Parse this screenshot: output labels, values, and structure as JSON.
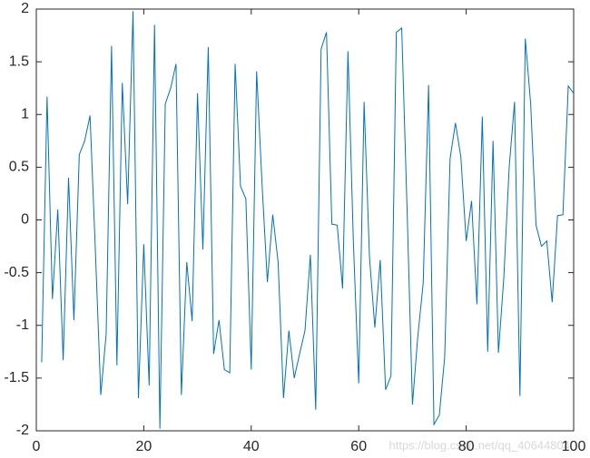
{
  "chart_data": {
    "type": "line",
    "x": [
      1,
      2,
      3,
      4,
      5,
      6,
      7,
      8,
      9,
      10,
      11,
      12,
      13,
      14,
      15,
      16,
      17,
      18,
      19,
      20,
      21,
      22,
      23,
      24,
      25,
      26,
      27,
      28,
      29,
      30,
      31,
      32,
      33,
      34,
      35,
      36,
      37,
      38,
      39,
      40,
      41,
      42,
      43,
      44,
      45,
      46,
      47,
      48,
      49,
      50,
      51,
      52,
      53,
      54,
      55,
      56,
      57,
      58,
      59,
      60,
      61,
      62,
      63,
      64,
      65,
      66,
      67,
      68,
      69,
      70,
      71,
      72,
      73,
      74,
      75,
      76,
      77,
      78,
      79,
      80,
      81,
      82,
      83,
      84,
      85,
      86,
      87,
      88,
      89,
      90,
      91,
      92,
      93,
      94,
      95,
      96,
      97,
      98,
      99,
      100
    ],
    "values": [
      -1.35,
      1.17,
      -0.75,
      0.1,
      -1.33,
      0.4,
      -0.95,
      0.62,
      0.75,
      0.99,
      -0.3,
      -1.66,
      -1.08,
      1.65,
      -1.38,
      1.3,
      0.15,
      1.98,
      -1.69,
      -0.23,
      -1.57,
      1.85,
      -1.98,
      1.1,
      1.25,
      1.48,
      -1.66,
      -0.4,
      -0.96,
      1.2,
      -0.28,
      1.64,
      -1.27,
      -0.95,
      -1.42,
      -1.45,
      1.48,
      0.32,
      0.2,
      -1.42,
      1.41,
      0.35,
      -0.59,
      0.05,
      -0.4,
      -1.69,
      -1.05,
      -1.5,
      -1.27,
      -1.05,
      -0.33,
      -1.8,
      1.62,
      1.78,
      -0.04,
      -0.05,
      -0.65,
      1.6,
      -0.2,
      -1.55,
      1.12,
      -0.35,
      -1.02,
      -0.38,
      -1.61,
      -1.48,
      1.78,
      1.82,
      0.1,
      -1.75,
      -1.1,
      -0.6,
      1.28,
      -1.94,
      -1.85,
      -1.3,
      0.58,
      0.92,
      0.6,
      -0.2,
      0.18,
      -0.8,
      0.98,
      -1.25,
      0.75,
      -1.26,
      -0.55,
      0.5,
      1.12,
      -1.67,
      1.72,
      1.1,
      -0.05,
      -0.25,
      -0.2,
      -0.78,
      0.04,
      0.05,
      1.27,
      1.2
    ],
    "color": "#0072bd",
    "xlim": [
      0,
      100
    ],
    "xticks": [
      0,
      20,
      40,
      60,
      80,
      100
    ],
    "ylim": [
      -2,
      2
    ],
    "yticks": [
      -2,
      -1.5,
      -1,
      -0.5,
      0,
      0.5,
      1,
      1.5,
      2
    ],
    "watermark": "https://blog.csdn.net/qq_40644804"
  }
}
